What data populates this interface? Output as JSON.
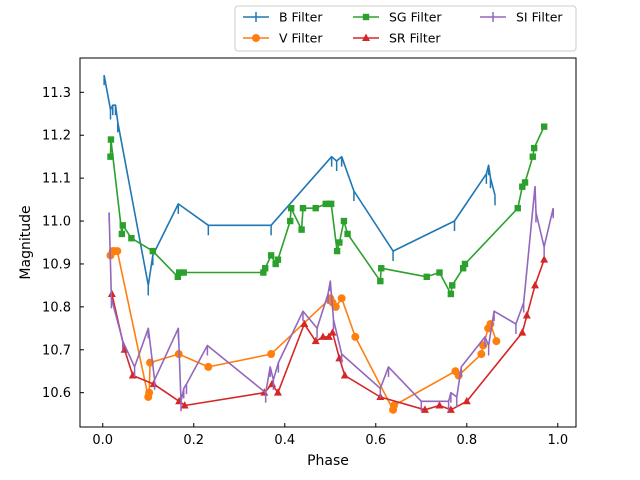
{
  "chart_data": {
    "type": "line",
    "xlabel": "Phase",
    "ylabel": "Magnitude",
    "xlim": [
      -0.05,
      1.04
    ],
    "ylim": [
      11.38,
      10.52
    ],
    "y_inverted": true,
    "grid": false,
    "legend_position": "top-right (outside, above plot)",
    "x_ticks": [
      0.0,
      0.2,
      0.4,
      0.6,
      0.8,
      1.0
    ],
    "x_tick_labels": [
      "0.0",
      "0.2",
      "0.4",
      "0.6",
      "0.8",
      "1.0"
    ],
    "y_ticks": [
      10.6,
      10.7,
      10.8,
      10.9,
      11.0,
      11.1,
      11.2,
      11.3
    ],
    "y_tick_labels": [
      "10.6",
      "10.7",
      "10.8",
      "10.9",
      "11.0",
      "11.1",
      "11.2",
      "11.3"
    ],
    "series": [
      {
        "name": "B Filter",
        "color": "#1f77b4",
        "marker": "tick-down",
        "x": [
          0.003,
          0.017,
          0.022,
          0.028,
          0.033,
          0.1,
          0.11,
          0.166,
          0.232,
          0.37,
          0.503,
          0.514,
          0.525,
          0.552,
          0.638,
          0.773,
          0.843,
          0.848,
          0.852,
          0.862
        ],
        "y": [
          11.34,
          11.26,
          11.27,
          11.27,
          11.23,
          10.85,
          10.92,
          11.04,
          10.99,
          10.99,
          11.15,
          11.14,
          11.15,
          11.07,
          10.93,
          11.0,
          11.11,
          11.13,
          11.1,
          11.06
        ]
      },
      {
        "name": "V Filter",
        "color": "#ff7f0e",
        "marker": "circle",
        "x": [
          0.017,
          0.022,
          0.026,
          0.032,
          0.1,
          0.102,
          0.104,
          0.167,
          0.232,
          0.37,
          0.5,
          0.505,
          0.512,
          0.525,
          0.555,
          0.638,
          0.64,
          0.775,
          0.782,
          0.832,
          0.836,
          0.847,
          0.852,
          0.865
        ],
        "y": [
          10.92,
          10.93,
          10.93,
          10.93,
          10.59,
          10.6,
          10.67,
          10.69,
          10.66,
          10.69,
          10.82,
          10.81,
          10.8,
          10.82,
          10.73,
          10.56,
          10.57,
          10.65,
          10.64,
          10.69,
          10.71,
          10.75,
          10.76,
          10.72
        ]
      },
      {
        "name": "SG Filter",
        "color": "#2ca02c",
        "marker": "square",
        "x": [
          0.017,
          0.018,
          0.042,
          0.044,
          0.063,
          0.11,
          0.165,
          0.168,
          0.178,
          0.353,
          0.357,
          0.37,
          0.38,
          0.385,
          0.412,
          0.414,
          0.437,
          0.44,
          0.468,
          0.49,
          0.497,
          0.502,
          0.515,
          0.52,
          0.53,
          0.538,
          0.61,
          0.612,
          0.712,
          0.74,
          0.765,
          0.768,
          0.792,
          0.796,
          0.912,
          0.922,
          0.928,
          0.945,
          0.948,
          0.97
        ],
        "y": [
          11.15,
          11.19,
          10.97,
          10.99,
          10.96,
          10.93,
          10.87,
          10.88,
          10.88,
          10.88,
          10.89,
          10.92,
          10.9,
          10.91,
          11.0,
          11.03,
          10.98,
          11.03,
          11.03,
          11.04,
          11.04,
          11.04,
          10.93,
          10.95,
          11.0,
          10.97,
          10.86,
          10.89,
          10.87,
          10.88,
          10.83,
          10.85,
          10.89,
          10.9,
          11.03,
          11.08,
          11.09,
          11.15,
          11.17,
          11.22
        ]
      },
      {
        "name": "SR Filter",
        "color": "#d62728",
        "marker": "triangle",
        "x": [
          0.02,
          0.048,
          0.066,
          0.112,
          0.168,
          0.18,
          0.355,
          0.372,
          0.385,
          0.443,
          0.468,
          0.484,
          0.497,
          0.505,
          0.52,
          0.532,
          0.61,
          0.708,
          0.74,
          0.765,
          0.8,
          0.922,
          0.932,
          0.95,
          0.97
        ],
        "y": [
          10.83,
          10.7,
          10.64,
          10.62,
          10.58,
          10.57,
          10.6,
          10.62,
          10.6,
          10.76,
          10.72,
          10.73,
          10.73,
          10.74,
          10.68,
          10.64,
          10.59,
          10.56,
          10.57,
          10.56,
          10.58,
          10.74,
          10.78,
          10.85,
          10.91
        ]
      },
      {
        "name": "SI Filter",
        "color": "#9467bd",
        "marker": "tick-down",
        "x": [
          0.014,
          0.019,
          0.044,
          0.07,
          0.1,
          0.114,
          0.166,
          0.172,
          0.178,
          0.184,
          0.23,
          0.358,
          0.368,
          0.375,
          0.386,
          0.44,
          0.471,
          0.495,
          0.5,
          0.507,
          0.525,
          0.61,
          0.628,
          0.7,
          0.76,
          0.765,
          0.778,
          0.788,
          0.84,
          0.848,
          0.86,
          0.908,
          0.925,
          0.95,
          0.952,
          0.97,
          0.99
        ],
        "y": [
          11.02,
          10.82,
          10.72,
          10.66,
          10.75,
          10.63,
          10.75,
          10.58,
          10.61,
          10.62,
          10.71,
          10.6,
          10.66,
          10.63,
          10.67,
          10.79,
          10.75,
          10.83,
          10.86,
          10.77,
          10.69,
          10.61,
          10.66,
          10.58,
          10.58,
          10.6,
          10.59,
          10.66,
          10.73,
          10.71,
          10.79,
          10.76,
          10.81,
          11.08,
          11.02,
          10.94,
          11.03
        ]
      }
    ]
  }
}
